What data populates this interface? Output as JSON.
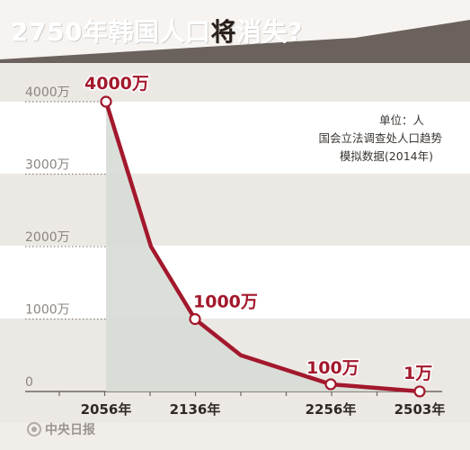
{
  "header": {
    "title_pre": "2750年韩国人口",
    "title_hl": "将",
    "title_post": "消失?"
  },
  "legend": {
    "unit": "单位：人",
    "source": "国会立法调查处人口趋势",
    "note": "模拟数据(2014年)"
  },
  "footer": {
    "logo_text": "中央日报"
  },
  "colors": {
    "line": "#a3182c",
    "area": "#d7dbd6",
    "header": "#6b625d",
    "band_light": "#ffffff",
    "band_dark": "#ece8e4"
  },
  "chart_data": {
    "type": "area",
    "title": "2750年韩国人口将消失?",
    "ylim": [
      0,
      4000
    ],
    "yticks": [
      {
        "value": 4000,
        "label": "4000万"
      },
      {
        "value": 3000,
        "label": "3000万"
      },
      {
        "value": 2000,
        "label": "2000万"
      },
      {
        "value": 1000,
        "label": "1000万"
      },
      {
        "value": 0,
        "label": "0"
      }
    ],
    "xticks": [
      "2056年",
      "2136年",
      "2256年",
      "2503年"
    ],
    "series": [
      {
        "values": [
          4000,
          2000,
          1000,
          500,
          100,
          1
        ]
      }
    ],
    "point_labels": [
      "4000万",
      "",
      "1000万",
      "",
      "100万",
      "1万"
    ]
  }
}
